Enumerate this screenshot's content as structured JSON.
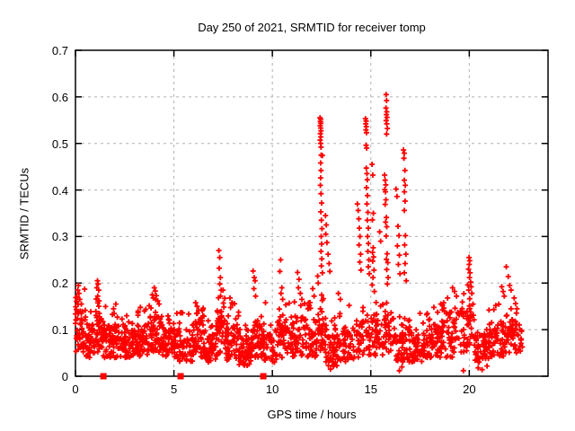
{
  "title": "Day 250 of 2021, SRMTID for receiver tomp",
  "chart_data": {
    "type": "scatter",
    "title": "Day 250 of 2021, SRMTID for receiver tomp",
    "xlabel": "GPS time / hours",
    "ylabel": "SRMTID / TECUs",
    "xlim": [
      0,
      24
    ],
    "ylim": [
      0,
      0.7
    ],
    "xticks": [
      0,
      5,
      10,
      15,
      20
    ],
    "xtick_labels": [
      "0",
      "5",
      "10",
      "15",
      "20"
    ],
    "yticks": [
      0,
      0.1,
      0.2,
      0.3,
      0.4,
      0.5,
      0.6,
      0.7
    ],
    "ytick_labels": [
      "0",
      "0.1",
      "0.2",
      "0.3",
      "0.4",
      "0.5",
      "0.6",
      "0.7"
    ],
    "grid": {
      "on": true,
      "style": "dashed",
      "color": "#b0b0b0"
    },
    "legend": "none",
    "frame_color": "#000000",
    "series": [
      {
        "name": "SRMTID",
        "marker": "plus",
        "color": "#ff0000",
        "outlier_points": [
          [
            0.08,
            0.17
          ],
          [
            0.12,
            0.185
          ],
          [
            0.15,
            0.195
          ],
          [
            0.18,
            0.178
          ],
          [
            0.22,
            0.165
          ],
          [
            0.3,
            0.155
          ],
          [
            1.08,
            0.19
          ],
          [
            1.12,
            0.205
          ],
          [
            1.15,
            0.198
          ],
          [
            1.18,
            0.185
          ],
          [
            1.13,
            0.172
          ],
          [
            1.2,
            0.162
          ],
          [
            2.05,
            0.155
          ],
          [
            2.6,
            0.13
          ],
          [
            3.3,
            0.148
          ],
          [
            3.5,
            0.14
          ],
          [
            3.9,
            0.175
          ],
          [
            3.95,
            0.168
          ],
          [
            4.0,
            0.19
          ],
          [
            4.05,
            0.183
          ],
          [
            4.1,
            0.173
          ],
          [
            4.18,
            0.162
          ],
          [
            4.25,
            0.155
          ],
          [
            5.15,
            0.135
          ],
          [
            6.1,
            0.158
          ],
          [
            6.18,
            0.15
          ],
          [
            6.25,
            0.142
          ],
          [
            7.28,
            0.27
          ],
          [
            7.33,
            0.255
          ],
          [
            7.3,
            0.232
          ],
          [
            7.36,
            0.212
          ],
          [
            7.33,
            0.198
          ],
          [
            7.4,
            0.185
          ],
          [
            7.37,
            0.172
          ],
          [
            7.85,
            0.168
          ],
          [
            7.95,
            0.158
          ],
          [
            9.02,
            0.226
          ],
          [
            9.08,
            0.212
          ],
          [
            9.12,
            0.205
          ],
          [
            9.06,
            0.188
          ],
          [
            9.15,
            0.172
          ],
          [
            9.65,
            0.158
          ],
          [
            10.42,
            0.25
          ],
          [
            10.38,
            0.225
          ],
          [
            10.48,
            0.19
          ],
          [
            10.44,
            0.178
          ],
          [
            10.52,
            0.165
          ],
          [
            11.28,
            0.223
          ],
          [
            11.35,
            0.208
          ],
          [
            11.32,
            0.19
          ],
          [
            11.42,
            0.178
          ],
          [
            11.5,
            0.165
          ],
          [
            11.85,
            0.152
          ],
          [
            12.05,
            0.188
          ],
          [
            12.12,
            0.172
          ],
          [
            12.3,
            0.215
          ],
          [
            12.33,
            0.2
          ],
          [
            12.42,
            0.555
          ],
          [
            12.45,
            0.552
          ],
          [
            12.44,
            0.547
          ],
          [
            12.46,
            0.543
          ],
          [
            12.43,
            0.538
          ],
          [
            12.45,
            0.533
          ],
          [
            12.47,
            0.527
          ],
          [
            12.44,
            0.521
          ],
          [
            12.46,
            0.514
          ],
          [
            12.43,
            0.507
          ],
          [
            12.45,
            0.5
          ],
          [
            12.47,
            0.492
          ],
          [
            12.48,
            0.475
          ],
          [
            12.54,
            0.474
          ],
          [
            12.45,
            0.458
          ],
          [
            12.47,
            0.442
          ],
          [
            12.45,
            0.426
          ],
          [
            12.44,
            0.41
          ],
          [
            12.47,
            0.392
          ],
          [
            12.5,
            0.372
          ],
          [
            12.46,
            0.353
          ],
          [
            12.49,
            0.335
          ],
          [
            12.52,
            0.317
          ],
          [
            12.48,
            0.3
          ],
          [
            12.5,
            0.284
          ],
          [
            12.47,
            0.268
          ],
          [
            12.51,
            0.252
          ],
          [
            12.49,
            0.237
          ],
          [
            12.54,
            0.222
          ],
          [
            12.7,
            0.345
          ],
          [
            12.74,
            0.325
          ],
          [
            12.71,
            0.305
          ],
          [
            12.77,
            0.287
          ],
          [
            12.83,
            0.262
          ],
          [
            12.88,
            0.242
          ],
          [
            12.92,
            0.225
          ],
          [
            12.95,
            0.015
          ],
          [
            13.08,
            0.022
          ],
          [
            13.2,
            0.03
          ],
          [
            13.35,
            0.178
          ],
          [
            13.45,
            0.165
          ],
          [
            13.9,
            0.152
          ],
          [
            14.32,
            0.37
          ],
          [
            14.36,
            0.356
          ],
          [
            14.39,
            0.338
          ],
          [
            14.42,
            0.318
          ],
          [
            14.45,
            0.3
          ],
          [
            14.4,
            0.282
          ],
          [
            14.48,
            0.262
          ],
          [
            14.44,
            0.245
          ],
          [
            14.5,
            0.228
          ],
          [
            14.73,
            0.553
          ],
          [
            14.76,
            0.548
          ],
          [
            14.74,
            0.542
          ],
          [
            14.77,
            0.536
          ],
          [
            14.75,
            0.529
          ],
          [
            14.78,
            0.523
          ],
          [
            14.76,
            0.496
          ],
          [
            14.79,
            0.49
          ],
          [
            14.77,
            0.447
          ],
          [
            14.8,
            0.435
          ],
          [
            14.82,
            0.422
          ],
          [
            14.78,
            0.405
          ],
          [
            14.83,
            0.388
          ],
          [
            14.8,
            0.37
          ],
          [
            14.85,
            0.352
          ],
          [
            14.82,
            0.335
          ],
          [
            14.87,
            0.318
          ],
          [
            14.84,
            0.3
          ],
          [
            14.88,
            0.285
          ],
          [
            14.85,
            0.268
          ],
          [
            14.9,
            0.25
          ],
          [
            14.87,
            0.235
          ],
          [
            14.92,
            0.22
          ],
          [
            15.06,
            0.455
          ],
          [
            15.1,
            0.432
          ],
          [
            15.13,
            0.35
          ],
          [
            15.08,
            0.336
          ],
          [
            15.12,
            0.276
          ],
          [
            15.09,
            0.266
          ],
          [
            15.14,
            0.256
          ],
          [
            15.1,
            0.247
          ],
          [
            15.16,
            0.228
          ],
          [
            15.11,
            0.212
          ],
          [
            15.07,
            0.196
          ],
          [
            15.18,
            0.182
          ],
          [
            15.45,
            0.31
          ],
          [
            15.5,
            0.29
          ],
          [
            15.78,
            0.605
          ],
          [
            15.8,
            0.592
          ],
          [
            15.77,
            0.576
          ],
          [
            15.81,
            0.568
          ],
          [
            15.79,
            0.562
          ],
          [
            15.82,
            0.556
          ],
          [
            15.78,
            0.549
          ],
          [
            15.81,
            0.542
          ],
          [
            15.84,
            0.532
          ],
          [
            15.8,
            0.52
          ],
          [
            15.7,
            0.432
          ],
          [
            15.73,
            0.421
          ],
          [
            15.76,
            0.411
          ],
          [
            15.71,
            0.401
          ],
          [
            15.74,
            0.396
          ],
          [
            15.77,
            0.379
          ],
          [
            15.73,
            0.369
          ],
          [
            15.79,
            0.341
          ],
          [
            15.75,
            0.331
          ],
          [
            15.81,
            0.321
          ],
          [
            15.78,
            0.301
          ],
          [
            15.83,
            0.263
          ],
          [
            15.79,
            0.251
          ],
          [
            15.86,
            0.244
          ],
          [
            15.81,
            0.229
          ],
          [
            15.88,
            0.212
          ],
          [
            15.84,
            0.198
          ],
          [
            16.28,
            0.402
          ],
          [
            16.33,
            0.386
          ],
          [
            16.38,
            0.322
          ],
          [
            16.43,
            0.302
          ],
          [
            16.35,
            0.28
          ],
          [
            16.45,
            0.26
          ],
          [
            16.4,
            0.24
          ],
          [
            16.48,
            0.22
          ],
          [
            16.66,
            0.486
          ],
          [
            16.7,
            0.479
          ],
          [
            16.68,
            0.468
          ],
          [
            16.73,
            0.442
          ],
          [
            16.7,
            0.421
          ],
          [
            16.75,
            0.41
          ],
          [
            16.71,
            0.396
          ],
          [
            16.74,
            0.376
          ],
          [
            16.7,
            0.356
          ],
          [
            16.76,
            0.302
          ],
          [
            16.72,
            0.282
          ],
          [
            16.78,
            0.262
          ],
          [
            16.74,
            0.242
          ],
          [
            16.7,
            0.222
          ],
          [
            16.8,
            0.205
          ],
          [
            16.45,
            0.012
          ],
          [
            16.58,
            0.02
          ],
          [
            17.5,
            0.135
          ],
          [
            18.2,
            0.148
          ],
          [
            18.55,
            0.155
          ],
          [
            18.9,
            0.168
          ],
          [
            19.15,
            0.19
          ],
          [
            19.25,
            0.182
          ],
          [
            19.35,
            0.172
          ],
          [
            19.92,
            0.196
          ],
          [
            19.96,
            0.23
          ],
          [
            19.99,
            0.255
          ],
          [
            20.02,
            0.248
          ],
          [
            20.0,
            0.24
          ],
          [
            20.04,
            0.222
          ],
          [
            20.01,
            0.212
          ],
          [
            20.07,
            0.202
          ],
          [
            20.1,
            0.192
          ],
          [
            19.97,
            0.185
          ],
          [
            20.13,
            0.178
          ],
          [
            19.7,
            0.012
          ],
          [
            20.45,
            0.018
          ],
          [
            20.65,
            0.014
          ],
          [
            20.9,
            0.022
          ],
          [
            21.35,
            0.152
          ],
          [
            21.65,
            0.192
          ],
          [
            21.72,
            0.182
          ],
          [
            21.78,
            0.172
          ],
          [
            21.88,
            0.235
          ],
          [
            21.98,
            0.214
          ],
          [
            22.05,
            0.195
          ],
          [
            22.12,
            0.185
          ],
          [
            22.28,
            0.168
          ],
          [
            22.35,
            0.156
          ],
          [
            22.42,
            0.145
          ]
        ],
        "noise_bands": [
          [
            0.0,
            0.5,
            50,
            0.05,
            0.15,
            0.19
          ],
          [
            0.5,
            1.0,
            45,
            0.04,
            0.11,
            0.14
          ],
          [
            1.0,
            1.4,
            40,
            0.05,
            0.13,
            0.18
          ],
          [
            1.4,
            2.2,
            70,
            0.04,
            0.11,
            0.15
          ],
          [
            2.2,
            3.0,
            70,
            0.04,
            0.1,
            0.13
          ],
          [
            3.0,
            3.7,
            60,
            0.04,
            0.11,
            0.15
          ],
          [
            3.7,
            4.4,
            60,
            0.05,
            0.13,
            0.17
          ],
          [
            4.4,
            5.2,
            65,
            0.04,
            0.1,
            0.13
          ],
          [
            5.2,
            6.0,
            65,
            0.03,
            0.1,
            0.14
          ],
          [
            6.0,
            6.6,
            50,
            0.04,
            0.12,
            0.15
          ],
          [
            6.6,
            7.2,
            50,
            0.03,
            0.09,
            0.12
          ],
          [
            7.2,
            7.6,
            40,
            0.05,
            0.14,
            0.19
          ],
          [
            7.6,
            8.3,
            60,
            0.03,
            0.11,
            0.16
          ],
          [
            8.3,
            9.0,
            60,
            0.02,
            0.08,
            0.11
          ],
          [
            9.0,
            9.4,
            35,
            0.04,
            0.12,
            0.17
          ],
          [
            9.4,
            10.2,
            60,
            0.03,
            0.09,
            0.13
          ],
          [
            10.2,
            10.8,
            45,
            0.04,
            0.12,
            0.16
          ],
          [
            10.8,
            11.6,
            55,
            0.04,
            0.13,
            0.17
          ],
          [
            11.6,
            12.3,
            50,
            0.04,
            0.12,
            0.16
          ],
          [
            12.3,
            12.7,
            35,
            0.05,
            0.15,
            0.21
          ],
          [
            12.7,
            13.4,
            55,
            0.02,
            0.09,
            0.13
          ],
          [
            13.4,
            14.2,
            55,
            0.03,
            0.1,
            0.14
          ],
          [
            14.2,
            15.0,
            50,
            0.04,
            0.12,
            0.16
          ],
          [
            15.0,
            15.6,
            40,
            0.04,
            0.13,
            0.17
          ],
          [
            15.6,
            16.2,
            40,
            0.05,
            0.14,
            0.18
          ],
          [
            16.2,
            17.0,
            60,
            0.03,
            0.1,
            0.13
          ],
          [
            17.0,
            17.8,
            60,
            0.03,
            0.09,
            0.12
          ],
          [
            17.8,
            18.6,
            60,
            0.04,
            0.11,
            0.14
          ],
          [
            18.6,
            19.4,
            55,
            0.04,
            0.12,
            0.16
          ],
          [
            19.4,
            20.3,
            55,
            0.05,
            0.14,
            0.18
          ],
          [
            20.3,
            21.0,
            55,
            0.03,
            0.09,
            0.12
          ],
          [
            21.0,
            21.8,
            50,
            0.04,
            0.12,
            0.16
          ],
          [
            21.8,
            22.4,
            45,
            0.05,
            0.13,
            0.16
          ],
          [
            22.4,
            22.7,
            15,
            0.05,
            0.1,
            0.13
          ]
        ],
        "band_tail_fraction": 0.12,
        "seed": 42
      },
      {
        "name": "axis-markers",
        "marker": "filled-square",
        "color": "#ff0000",
        "points": [
          [
            1.42,
            0
          ],
          [
            5.34,
            0
          ],
          [
            9.54,
            0
          ]
        ]
      }
    ]
  }
}
